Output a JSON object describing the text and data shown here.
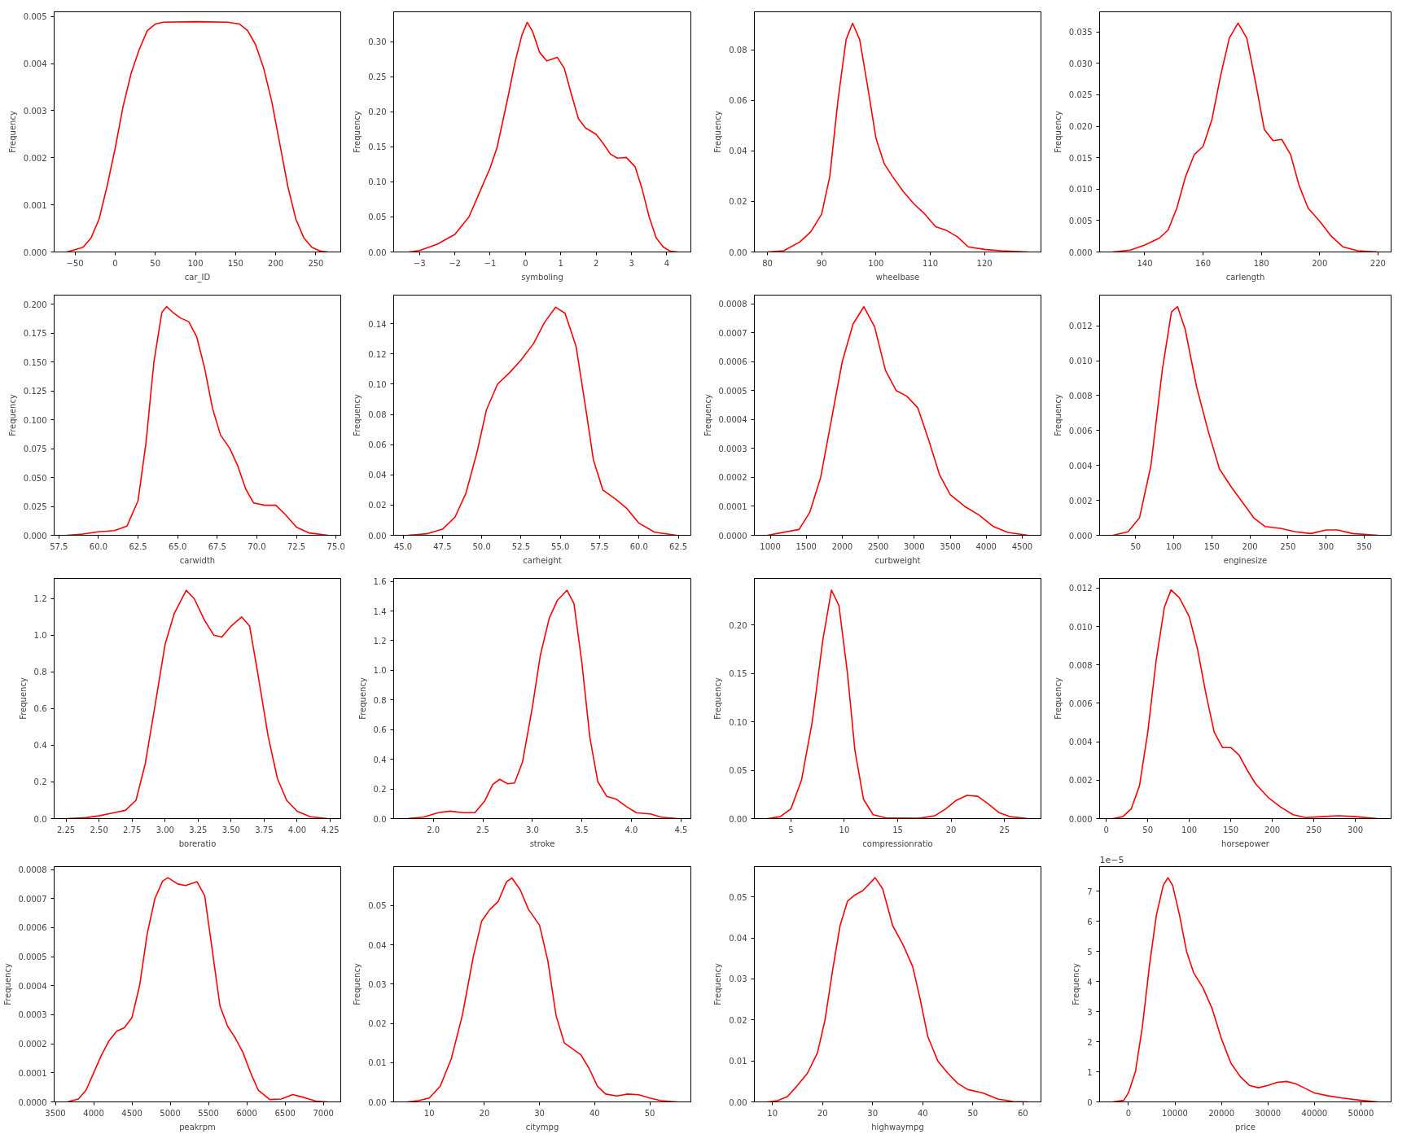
{
  "chart_data": [
    {
      "type": "line",
      "color": "#ff0000",
      "xlabel": "car_ID",
      "ylabel": "Frequency",
      "xlim": [
        -76,
        281
      ],
      "ylim": [
        0,
        0.0051
      ],
      "xticks": [
        -50,
        0,
        50,
        100,
        150,
        200,
        250
      ],
      "yticks": [
        {
          "value": 0,
          "label": "0.000"
        },
        {
          "value": 0.001,
          "label": "0.001"
        },
        {
          "value": 0.002,
          "label": "0.002"
        },
        {
          "value": 0.003,
          "label": "0.003"
        },
        {
          "value": 0.004,
          "label": "0.004"
        },
        {
          "value": 0.005,
          "label": "0.005"
        }
      ],
      "x": [
        -60,
        -40,
        -30,
        -20,
        -10,
        0,
        10,
        20,
        30,
        40,
        50,
        60,
        100,
        140,
        155,
        165,
        175,
        185,
        195,
        205,
        215,
        225,
        235,
        245,
        255,
        265
      ],
      "values": [
        0,
        0.0001,
        0.0003,
        0.0007,
        0.0014,
        0.0022,
        0.0031,
        0.0038,
        0.0043,
        0.0047,
        0.00484,
        0.00488,
        0.00489,
        0.00488,
        0.00484,
        0.0047,
        0.0044,
        0.0039,
        0.0032,
        0.0023,
        0.0014,
        0.0007,
        0.0003,
        0.0001,
        2e-05,
        0
      ]
    },
    {
      "type": "line",
      "color": "#ff0000",
      "xlabel": "symboling",
      "ylabel": "Frequency",
      "xlim": [
        -3.73,
        4.68
      ],
      "ylim": [
        0,
        0.343
      ],
      "xticks": [
        -3,
        -2,
        -1,
        0,
        1,
        2,
        3,
        4
      ],
      "yticks": [
        {
          "value": 0,
          "label": "0.00"
        },
        {
          "value": 0.05,
          "label": "0.05"
        },
        {
          "value": 0.1,
          "label": "0.10"
        },
        {
          "value": 0.15,
          "label": "0.15"
        },
        {
          "value": 0.2,
          "label": "0.20"
        },
        {
          "value": 0.25,
          "label": "0.25"
        },
        {
          "value": 0.3,
          "label": "0.30"
        }
      ],
      "x": [
        -3.3,
        -3,
        -2.5,
        -2,
        -1.6,
        -1.3,
        -1,
        -0.8,
        -0.5,
        -0.3,
        -0.1,
        0.05,
        0.2,
        0.4,
        0.6,
        0.9,
        1.1,
        1.3,
        1.5,
        1.7,
        2,
        2.2,
        2.4,
        2.6,
        2.85,
        3.1,
        3.3,
        3.5,
        3.7,
        3.9,
        4.1,
        4.3
      ],
      "values": [
        0,
        0.002,
        0.011,
        0.025,
        0.05,
        0.085,
        0.12,
        0.15,
        0.22,
        0.27,
        0.31,
        0.328,
        0.315,
        0.285,
        0.273,
        0.278,
        0.262,
        0.225,
        0.19,
        0.177,
        0.168,
        0.155,
        0.14,
        0.134,
        0.135,
        0.122,
        0.09,
        0.05,
        0.02,
        0.007,
        0.001,
        0
      ]
    },
    {
      "type": "line",
      "color": "#ff0000",
      "xlabel": "wheelbase",
      "ylabel": "Frequency",
      "xlim": [
        77.6,
        130.4
      ],
      "ylim": [
        0,
        0.095
      ],
      "xticks": [
        80,
        90,
        100,
        110,
        120
      ],
      "yticks": [
        {
          "value": 0,
          "label": "0.00"
        },
        {
          "value": 0.02,
          "label": "0.02"
        },
        {
          "value": 0.04,
          "label": "0.04"
        },
        {
          "value": 0.06,
          "label": "0.06"
        },
        {
          "value": 0.08,
          "label": "0.08"
        }
      ],
      "x": [
        80,
        83,
        86,
        88,
        90,
        91.5,
        93,
        94.5,
        95.7,
        97,
        98.5,
        100,
        101.5,
        103,
        105,
        107,
        109,
        111,
        113,
        115,
        117,
        120,
        123,
        128
      ],
      "values": [
        0,
        0.0005,
        0.004,
        0.008,
        0.015,
        0.03,
        0.06,
        0.084,
        0.0905,
        0.084,
        0.065,
        0.045,
        0.035,
        0.03,
        0.024,
        0.019,
        0.015,
        0.01,
        0.0085,
        0.006,
        0.002,
        0.001,
        0.0005,
        0
      ]
    },
    {
      "type": "line",
      "color": "#ff0000",
      "xlabel": "carlength",
      "ylabel": "Frequency",
      "xlim": [
        124.5,
        224.5
      ],
      "ylim": [
        0,
        0.0382
      ],
      "xticks": [
        140,
        160,
        180,
        200,
        220
      ],
      "yticks": [
        {
          "value": 0,
          "label": "0.000"
        },
        {
          "value": 0.005,
          "label": "0.005"
        },
        {
          "value": 0.01,
          "label": "0.010"
        },
        {
          "value": 0.015,
          "label": "0.015"
        },
        {
          "value": 0.02,
          "label": "0.020"
        },
        {
          "value": 0.025,
          "label": "0.025"
        },
        {
          "value": 0.03,
          "label": "0.030"
        },
        {
          "value": 0.035,
          "label": "0.035"
        }
      ],
      "x": [
        129,
        135,
        140,
        145,
        148,
        151,
        154,
        157,
        160,
        163,
        166,
        169,
        172,
        175,
        178,
        181,
        184,
        187,
        190,
        193,
        196,
        200,
        204,
        208,
        213,
        220
      ],
      "values": [
        0,
        0.0003,
        0.0011,
        0.0022,
        0.0035,
        0.007,
        0.012,
        0.0155,
        0.0168,
        0.021,
        0.028,
        0.034,
        0.0364,
        0.034,
        0.027,
        0.0195,
        0.0177,
        0.0179,
        0.0155,
        0.0105,
        0.007,
        0.0049,
        0.0025,
        0.0008,
        0.0002,
        0
      ]
    },
    {
      "type": "line",
      "color": "#ff0000",
      "xlabel": "carwidth",
      "ylabel": "Frequency",
      "xlim": [
        57.2,
        75.3
      ],
      "ylim": [
        0,
        0.208
      ],
      "xticks": [
        57.5,
        {
          "value": 60,
          "label": "60.0"
        },
        62.5,
        {
          "value": 65,
          "label": "65.0"
        },
        67.5,
        {
          "value": 70,
          "label": "70.0"
        },
        72.5,
        {
          "value": 75,
          "label": "75.0"
        }
      ],
      "yticks": [
        {
          "value": 0,
          "label": "0.000"
        },
        {
          "value": 0.025,
          "label": "0.025"
        },
        {
          "value": 0.05,
          "label": "0.050"
        },
        {
          "value": 0.075,
          "label": "0.075"
        },
        {
          "value": 0.1,
          "label": "0.100"
        },
        {
          "value": 0.125,
          "label": "0.125"
        },
        {
          "value": 0.15,
          "label": "0.150"
        },
        {
          "value": 0.175,
          "label": "0.175"
        },
        {
          "value": 0.2,
          "label": "0.200"
        }
      ],
      "x": [
        58,
        59,
        60,
        61,
        61.8,
        62.5,
        63,
        63.5,
        64,
        64.3,
        64.7,
        65.2,
        65.7,
        66.2,
        66.7,
        67.2,
        67.7,
        68.3,
        68.8,
        69.3,
        69.8,
        70.5,
        71.2,
        71.8,
        72.5,
        73.3,
        74.5
      ],
      "values": [
        0,
        0.001,
        0.003,
        0.004,
        0.008,
        0.03,
        0.08,
        0.15,
        0.193,
        0.198,
        0.193,
        0.188,
        0.185,
        0.172,
        0.145,
        0.11,
        0.087,
        0.075,
        0.06,
        0.04,
        0.028,
        0.026,
        0.026,
        0.018,
        0.007,
        0.002,
        0
      ]
    },
    {
      "type": "line",
      "color": "#ff0000",
      "xlabel": "carheight",
      "ylabel": "Frequency",
      "xlim": [
        44.4,
        63.3
      ],
      "ylim": [
        0,
        0.159
      ],
      "xticks": [
        {
          "value": 45,
          "label": "45.0"
        },
        47.5,
        {
          "value": 50,
          "label": "50.0"
        },
        52.5,
        {
          "value": 55,
          "label": "55.0"
        },
        57.5,
        {
          "value": 60,
          "label": "60.0"
        },
        62.5
      ],
      "yticks": [
        {
          "value": 0,
          "label": "0.00"
        },
        {
          "value": 0.02,
          "label": "0.02"
        },
        {
          "value": 0.04,
          "label": "0.04"
        },
        {
          "value": 0.06,
          "label": "0.06"
        },
        {
          "value": 0.08,
          "label": "0.08"
        },
        {
          "value": 0.1,
          "label": "0.10"
        },
        {
          "value": 0.12,
          "label": "0.12"
        },
        {
          "value": 0.14,
          "label": "0.14"
        }
      ],
      "x": [
        45.3,
        46.5,
        47.5,
        48.3,
        49,
        49.7,
        50.3,
        51,
        51.8,
        52.5,
        53.3,
        54,
        54.7,
        55.3,
        56,
        56.6,
        57.1,
        57.7,
        58.5,
        59.2,
        60,
        61,
        62.4
      ],
      "values": [
        0,
        0.001,
        0.004,
        0.012,
        0.028,
        0.055,
        0.083,
        0.1,
        0.108,
        0.116,
        0.127,
        0.141,
        0.151,
        0.147,
        0.125,
        0.085,
        0.05,
        0.03,
        0.024,
        0.018,
        0.008,
        0.002,
        0
      ]
    },
    {
      "type": "line",
      "color": "#ff0000",
      "xlabel": "curbweight",
      "ylabel": "Frequency",
      "xlim": [
        779,
        4761
      ],
      "ylim": [
        0,
        0.00083
      ],
      "xticks": [
        1000,
        1500,
        2000,
        2500,
        3000,
        3500,
        4000,
        4500
      ],
      "yticks": [
        {
          "value": 0,
          "label": "0.0000"
        },
        {
          "value": 0.0001,
          "label": "0.0001"
        },
        {
          "value": 0.0002,
          "label": "0.0002"
        },
        {
          "value": 0.0003,
          "label": "0.0003"
        },
        {
          "value": 0.0004,
          "label": "0.0004"
        },
        {
          "value": 0.0005,
          "label": "0.0005"
        },
        {
          "value": 0.0006,
          "label": "0.0006"
        },
        {
          "value": 0.0007,
          "label": "0.0007"
        },
        {
          "value": 0.0008,
          "label": "0.0008"
        }
      ],
      "x": [
        960,
        1400,
        1550,
        1700,
        1850,
        2000,
        2150,
        2300,
        2450,
        2600,
        2750,
        2900,
        3050,
        3200,
        3350,
        3500,
        3700,
        3900,
        4100,
        4300,
        4580
      ],
      "values": [
        0,
        2e-05,
        8e-05,
        0.0002,
        0.0004,
        0.0006,
        0.00073,
        0.00079,
        0.00072,
        0.00057,
        0.0005,
        0.00048,
        0.00044,
        0.00033,
        0.00021,
        0.00014,
        0.0001,
        7e-05,
        3e-05,
        1e-05,
        0
      ]
    },
    {
      "type": "line",
      "color": "#ff0000",
      "xlabel": "enginesize",
      "ylabel": "Frequency",
      "xlim": [
        2.6,
        385.4
      ],
      "ylim": [
        0,
        0.01376
      ],
      "xticks": [
        50,
        100,
        150,
        200,
        250,
        300,
        350
      ],
      "yticks": [
        {
          "value": 0,
          "label": "0.000"
        },
        {
          "value": 0.002,
          "label": "0.002"
        },
        {
          "value": 0.004,
          "label": "0.004"
        },
        {
          "value": 0.006,
          "label": "0.006"
        },
        {
          "value": 0.008,
          "label": "0.008"
        },
        {
          "value": 0.01,
          "label": "0.010"
        },
        {
          "value": 0.012,
          "label": "0.012"
        }
      ],
      "x": [
        20,
        40,
        55,
        70,
        85,
        97,
        105,
        115,
        130,
        145,
        160,
        175,
        190,
        205,
        220,
        240,
        260,
        280,
        300,
        315,
        335,
        368
      ],
      "values": [
        0,
        0.0002,
        0.001,
        0.004,
        0.0095,
        0.0128,
        0.0131,
        0.0118,
        0.0085,
        0.006,
        0.0038,
        0.0028,
        0.0019,
        0.001,
        0.0005,
        0.0004,
        0.0002,
        0.0001,
        0.0003,
        0.0003,
        0.0001,
        0
      ]
    },
    {
      "type": "line",
      "color": "#ff0000",
      "xlabel": "boreratio",
      "ylabel": "Frequency",
      "xlim": [
        2.16,
        4.33
      ],
      "ylim": [
        0,
        1.31
      ],
      "xticks": [
        2.25,
        {
          "value": 2.5,
          "label": "2.50"
        },
        2.75,
        {
          "value": 3,
          "label": "3.00"
        },
        3.25,
        {
          "value": 3.5,
          "label": "3.50"
        },
        3.75,
        {
          "value": 4,
          "label": "4.00"
        },
        4.25
      ],
      "yticks": [
        {
          "value": 0,
          "label": "0.0"
        },
        0.2,
        0.4,
        0.6,
        0.8,
        {
          "value": 1,
          "label": "1.0"
        },
        1.2
      ],
      "x": [
        2.26,
        2.4,
        2.5,
        2.6,
        2.7,
        2.78,
        2.85,
        2.92,
        3.0,
        3.07,
        3.16,
        3.22,
        3.3,
        3.37,
        3.43,
        3.5,
        3.58,
        3.64,
        3.7,
        3.78,
        3.85,
        3.92,
        4.0,
        4.1,
        4.23
      ],
      "values": [
        0,
        0.005,
        0.015,
        0.03,
        0.045,
        0.1,
        0.3,
        0.6,
        0.95,
        1.12,
        1.245,
        1.2,
        1.08,
        1.0,
        0.99,
        1.05,
        1.1,
        1.05,
        0.8,
        0.45,
        0.22,
        0.1,
        0.04,
        0.01,
        0
      ]
    },
    {
      "type": "line",
      "color": "#ff0000",
      "xlabel": "stroke",
      "ylabel": "Frequency",
      "xlim": [
        1.6,
        4.6
      ],
      "ylim": [
        0,
        1.62
      ],
      "xticks": [
        {
          "value": 2,
          "label": "2.0"
        },
        2.5,
        {
          "value": 3,
          "label": "3.0"
        },
        3.5,
        {
          "value": 4,
          "label": "4.0"
        },
        4.5
      ],
      "yticks": [
        {
          "value": 0,
          "label": "0.0"
        },
        0.2,
        0.4,
        0.6,
        0.8,
        {
          "value": 1,
          "label": "1.0"
        },
        1.2,
        1.4,
        1.6
      ],
      "x": [
        1.74,
        1.9,
        2.05,
        2.17,
        2.3,
        2.42,
        2.52,
        2.6,
        2.67,
        2.75,
        2.82,
        2.9,
        3.0,
        3.08,
        3.17,
        3.25,
        3.35,
        3.42,
        3.5,
        3.58,
        3.66,
        3.75,
        3.85,
        3.95,
        4.05,
        4.2,
        4.3,
        4.46
      ],
      "values": [
        0,
        0.01,
        0.04,
        0.05,
        0.04,
        0.04,
        0.12,
        0.23,
        0.265,
        0.235,
        0.24,
        0.38,
        0.75,
        1.1,
        1.35,
        1.47,
        1.54,
        1.45,
        1.05,
        0.55,
        0.25,
        0.15,
        0.13,
        0.08,
        0.04,
        0.03,
        0.01,
        0
      ]
    },
    {
      "type": "line",
      "color": "#ff0000",
      "xlabel": "compressionratio",
      "ylabel": "Frequency",
      "xlim": [
        1.58,
        28.42
      ],
      "ylim": [
        0,
        0.248
      ],
      "xticks": [
        5,
        10,
        15,
        20,
        25
      ],
      "yticks": [
        {
          "value": 0,
          "label": "0.00"
        },
        {
          "value": 0.05,
          "label": "0.05"
        },
        {
          "value": 0.1,
          "label": "0.10"
        },
        {
          "value": 0.15,
          "label": "0.15"
        },
        {
          "value": 0.2,
          "label": "0.20"
        }
      ],
      "x": [
        2.8,
        4,
        5,
        6,
        7,
        8,
        8.8,
        9.5,
        10.3,
        11,
        11.8,
        12.7,
        14,
        17,
        18.5,
        19.5,
        20.5,
        21.5,
        22.5,
        23.5,
        24.5,
        25.5,
        27.2
      ],
      "values": [
        0,
        0.002,
        0.01,
        0.04,
        0.1,
        0.185,
        0.236,
        0.22,
        0.15,
        0.07,
        0.02,
        0.004,
        0.0005,
        0.0003,
        0.003,
        0.01,
        0.019,
        0.024,
        0.023,
        0.015,
        0.006,
        0.002,
        0
      ]
    },
    {
      "type": "line",
      "color": "#ff0000",
      "xlabel": "horsepower",
      "ylabel": "Frequency",
      "xlim": [
        -8,
        343
      ],
      "ylim": [
        0,
        0.0125
      ],
      "xticks": [
        0,
        50,
        100,
        150,
        200,
        250,
        300
      ],
      "yticks": [
        {
          "value": 0,
          "label": "0.000"
        },
        {
          "value": 0.002,
          "label": "0.002"
        },
        {
          "value": 0.004,
          "label": "0.004"
        },
        {
          "value": 0.006,
          "label": "0.006"
        },
        {
          "value": 0.008,
          "label": "0.008"
        },
        {
          "value": 0.01,
          "label": "0.010"
        },
        {
          "value": 0.012,
          "label": "0.012"
        }
      ],
      "x": [
        8,
        20,
        30,
        40,
        50,
        60,
        70,
        78,
        88,
        100,
        110,
        120,
        130,
        140,
        150,
        160,
        170,
        180,
        195,
        210,
        225,
        240,
        260,
        280,
        300,
        327
      ],
      "values": [
        0,
        0.0001,
        0.0005,
        0.0017,
        0.0045,
        0.0082,
        0.011,
        0.0119,
        0.0115,
        0.0105,
        0.0088,
        0.0065,
        0.0045,
        0.0037,
        0.0037,
        0.0033,
        0.0025,
        0.0018,
        0.0011,
        0.0006,
        0.0002,
        5e-05,
        0.0001,
        0.00015,
        0.0001,
        0
      ]
    },
    {
      "type": "line",
      "color": "#ff0000",
      "xlabel": "peakrpm",
      "ylabel": "Frequency",
      "xlim": [
        3484,
        7227
      ],
      "ylim": [
        0,
        0.00081
      ],
      "xticks": [
        3500,
        4000,
        4500,
        5000,
        5500,
        6000,
        6500,
        7000
      ],
      "yticks": [
        {
          "value": 0,
          "label": "0.0000"
        },
        {
          "value": 0.0001,
          "label": "0.0001"
        },
        {
          "value": 0.0002,
          "label": "0.0002"
        },
        {
          "value": 0.0003,
          "label": "0.0003"
        },
        {
          "value": 0.0004,
          "label": "0.0004"
        },
        {
          "value": 0.0005,
          "label": "0.0005"
        },
        {
          "value": 0.0006,
          "label": "0.0006"
        },
        {
          "value": 0.0007,
          "label": "0.0007"
        },
        {
          "value": 0.0008,
          "label": "0.0008"
        }
      ],
      "x": [
        3654,
        3800,
        3900,
        4000,
        4100,
        4200,
        4300,
        4400,
        4500,
        4600,
        4700,
        4800,
        4900,
        4970,
        5100,
        5200,
        5350,
        5450,
        5550,
        5650,
        5750,
        5850,
        5950,
        6050,
        6150,
        6300,
        6450,
        6600,
        6750,
        6900,
        7057
      ],
      "values": [
        0,
        1e-05,
        4e-05,
        0.0001,
        0.00016,
        0.00021,
        0.000243,
        0.000255,
        0.00029,
        0.0004,
        0.00058,
        0.0007,
        0.00076,
        0.000772,
        0.00075,
        0.000745,
        0.000758,
        0.00071,
        0.00052,
        0.00033,
        0.00026,
        0.00022,
        0.00017,
        0.0001,
        4e-05,
        8e-06,
        1e-05,
        2.5e-05,
        1.5e-05,
        3e-06,
        0
      ]
    },
    {
      "type": "line",
      "color": "#ff0000",
      "xlabel": "citympg",
      "ylabel": "Frequency",
      "xlim": [
        3.55,
        57.45
      ],
      "ylim": [
        0,
        0.0599
      ],
      "xticks": [
        10,
        20,
        30,
        40,
        50
      ],
      "yticks": [
        {
          "value": 0,
          "label": "0.00"
        },
        {
          "value": 0.01,
          "label": "0.01"
        },
        {
          "value": 0.02,
          "label": "0.02"
        },
        {
          "value": 0.03,
          "label": "0.03"
        },
        {
          "value": 0.04,
          "label": "0.04"
        },
        {
          "value": 0.05,
          "label": "0.05"
        }
      ],
      "x": [
        6,
        8,
        10,
        12,
        14,
        16,
        18,
        19.5,
        21,
        22.5,
        24,
        25,
        26.5,
        28,
        30,
        31.5,
        33,
        34.5,
        36,
        37.5,
        39,
        40.5,
        42,
        44,
        46,
        48,
        50,
        52,
        55
      ],
      "values": [
        0,
        0.0003,
        0.001,
        0.004,
        0.011,
        0.022,
        0.037,
        0.046,
        0.049,
        0.051,
        0.056,
        0.057,
        0.054,
        0.049,
        0.045,
        0.036,
        0.022,
        0.015,
        0.0135,
        0.012,
        0.0085,
        0.004,
        0.002,
        0.0015,
        0.002,
        0.0018,
        0.001,
        0.0003,
        0
      ]
    },
    {
      "type": "line",
      "color": "#ff0000",
      "xlabel": "highwaympg",
      "ylabel": "Frequency",
      "xlim": [
        6.4,
        63.6
      ],
      "ylim": [
        0,
        0.0574
      ],
      "xticks": [
        10,
        20,
        30,
        40,
        50,
        60
      ],
      "yticks": [
        {
          "value": 0,
          "label": "0.00"
        },
        {
          "value": 0.01,
          "label": "0.01"
        },
        {
          "value": 0.02,
          "label": "0.02"
        },
        {
          "value": 0.03,
          "label": "0.03"
        },
        {
          "value": 0.04,
          "label": "0.04"
        },
        {
          "value": 0.05,
          "label": "0.05"
        }
      ],
      "x": [
        9,
        11,
        13,
        15,
        17,
        19,
        20.5,
        22,
        23.5,
        25,
        26.5,
        28,
        30.5,
        32,
        34,
        36,
        38,
        39.5,
        41,
        43,
        45,
        47,
        49,
        52,
        55,
        58,
        61
      ],
      "values": [
        0,
        0.0003,
        0.0013,
        0.004,
        0.007,
        0.012,
        0.02,
        0.032,
        0.043,
        0.049,
        0.0505,
        0.0515,
        0.0547,
        0.052,
        0.043,
        0.0385,
        0.033,
        0.025,
        0.016,
        0.01,
        0.007,
        0.0045,
        0.003,
        0.0022,
        0.0007,
        0.0001,
        0
      ]
    },
    {
      "type": "line",
      "color": "#ff0000",
      "xlabel": "price",
      "ylabel": "Frequency",
      "annotations": [
        "1e−5"
      ],
      "xlim": [
        -6200,
        56490
      ],
      "ylim": [
        0,
        7.82
      ],
      "xticks": [
        0,
        10000,
        20000,
        30000,
        40000,
        50000
      ],
      "yticks": [
        0,
        1,
        2,
        3,
        4,
        5,
        6,
        7
      ],
      "x": [
        -3350,
        -1000,
        0,
        1500,
        3000,
        4500,
        6000,
        7500,
        8500,
        9500,
        11000,
        12500,
        14000,
        16000,
        18000,
        20000,
        22000,
        24000,
        26000,
        28000,
        30000,
        32000,
        34000,
        36000,
        38000,
        40000,
        43000,
        46000,
        50000,
        53640
      ],
      "values": [
        0,
        0.05,
        0.3,
        1.0,
        2.5,
        4.5,
        6.2,
        7.2,
        7.45,
        7.2,
        6.2,
        5.0,
        4.3,
        3.8,
        3.1,
        2.1,
        1.3,
        0.85,
        0.55,
        0.47,
        0.55,
        0.65,
        0.68,
        0.6,
        0.45,
        0.3,
        0.2,
        0.13,
        0.05,
        0
      ]
    }
  ]
}
